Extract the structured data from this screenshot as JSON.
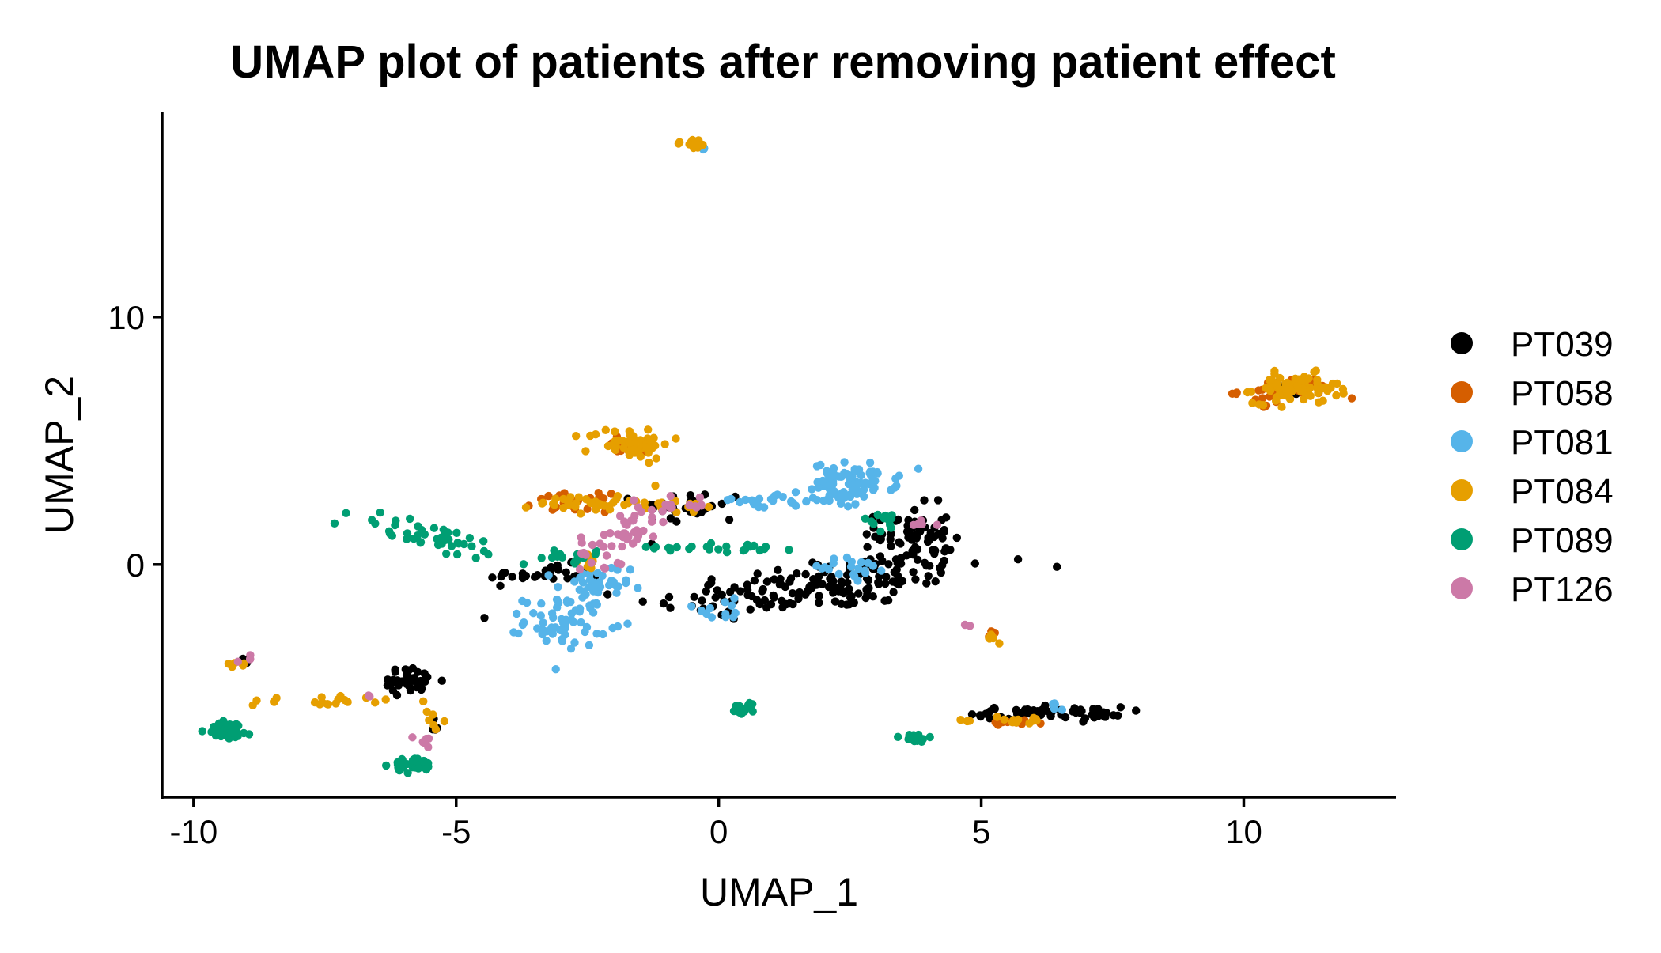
{
  "chart_data": {
    "type": "scatter",
    "title": "UMAP plot of patients after removing patient effect",
    "xlabel": "UMAP_1",
    "ylabel": "UMAP_2",
    "xlim": [
      -10.6,
      12.9
    ],
    "ylim": [
      -9.4,
      18.3
    ],
    "x_ticks": [
      -10,
      -5,
      0,
      5,
      10
    ],
    "x_tick_labels": [
      "-10",
      "-5",
      "0",
      "5",
      "10"
    ],
    "y_ticks": [
      0,
      10
    ],
    "y_tick_labels": [
      "0",
      "10"
    ],
    "grid": false,
    "legend_position": "right",
    "series": [
      {
        "name": "PT039",
        "color": "#000000",
        "clusters": [
          {
            "cx": 2.0,
            "cy": -0.8,
            "sx": 1.6,
            "sy": 0.55,
            "n": 170,
            "tilt": 0.25
          },
          {
            "cx": -0.5,
            "cy": 2.3,
            "sx": 0.5,
            "sy": 0.35,
            "n": 30
          },
          {
            "cx": -3.3,
            "cy": -0.4,
            "sx": 0.55,
            "sy": 0.2,
            "n": 30
          },
          {
            "cx": 3.7,
            "cy": 1.2,
            "sx": 0.35,
            "sy": 0.6,
            "n": 60
          },
          {
            "cx": -5.9,
            "cy": -4.7,
            "sx": 0.3,
            "sy": 0.25,
            "n": 40
          },
          {
            "cx": 6.3,
            "cy": -6.0,
            "sx": 0.7,
            "sy": 0.12,
            "n": 60
          },
          {
            "cx": -5.5,
            "cy": -6.5,
            "sx": 0.15,
            "sy": 0.2,
            "n": 6
          },
          {
            "cx": -9.0,
            "cy": -3.9,
            "sx": 0.08,
            "sy": 0.08,
            "n": 4
          },
          {
            "cx": 11.0,
            "cy": 7.0,
            "sx": 0.25,
            "sy": 0.3,
            "n": 4
          }
        ]
      },
      {
        "name": "PT058",
        "color": "#D55E00",
        "clusters": [
          {
            "cx": 10.8,
            "cy": 7.0,
            "sx": 0.45,
            "sy": 0.25,
            "n": 35
          },
          {
            "cx": -2.8,
            "cy": 2.5,
            "sx": 0.35,
            "sy": 0.18,
            "n": 25
          },
          {
            "cx": -1.7,
            "cy": 4.8,
            "sx": 0.35,
            "sy": 0.2,
            "n": 12
          },
          {
            "cx": 5.6,
            "cy": -6.4,
            "sx": 0.3,
            "sy": 0.1,
            "n": 10
          },
          {
            "cx": 5.2,
            "cy": -2.9,
            "sx": 0.1,
            "sy": 0.1,
            "n": 5
          }
        ]
      },
      {
        "name": "PT081",
        "color": "#56B4E9",
        "clusters": [
          {
            "cx": 2.6,
            "cy": 3.4,
            "sx": 0.4,
            "sy": 0.35,
            "n": 70
          },
          {
            "cx": 1.8,
            "cy": 2.7,
            "sx": 0.5,
            "sy": 0.2,
            "n": 25
          },
          {
            "cx": 0.8,
            "cy": 2.6,
            "sx": 0.4,
            "sy": 0.15,
            "n": 15
          },
          {
            "cx": -2.9,
            "cy": -2.3,
            "sx": 0.4,
            "sy": 0.5,
            "n": 60
          },
          {
            "cx": -2.4,
            "cy": -1.0,
            "sx": 0.35,
            "sy": 0.5,
            "n": 40
          },
          {
            "cx": 2.4,
            "cy": -0.2,
            "sx": 0.5,
            "sy": 0.3,
            "n": 20
          },
          {
            "cx": 0.0,
            "cy": -1.8,
            "sx": 0.4,
            "sy": 0.2,
            "n": 12
          },
          {
            "cx": 6.5,
            "cy": -5.8,
            "sx": 0.2,
            "sy": 0.1,
            "n": 5
          },
          {
            "cx": -0.3,
            "cy": 16.8,
            "sx": 0.05,
            "sy": 0.05,
            "n": 3
          }
        ]
      },
      {
        "name": "PT084",
        "color": "#E69F00",
        "clusters": [
          {
            "cx": 11.0,
            "cy": 7.1,
            "sx": 0.4,
            "sy": 0.3,
            "n": 80
          },
          {
            "cx": -1.7,
            "cy": 4.9,
            "sx": 0.4,
            "sy": 0.3,
            "n": 55
          },
          {
            "cx": -2.2,
            "cy": 2.5,
            "sx": 0.6,
            "sy": 0.2,
            "n": 40
          },
          {
            "cx": -0.5,
            "cy": 2.3,
            "sx": 0.4,
            "sy": 0.15,
            "n": 10
          },
          {
            "cx": -0.5,
            "cy": 17.0,
            "sx": 0.15,
            "sy": 0.1,
            "n": 14
          },
          {
            "cx": -7.4,
            "cy": -5.5,
            "sx": 0.8,
            "sy": 0.12,
            "n": 20
          },
          {
            "cx": -5.5,
            "cy": -6.3,
            "sx": 0.12,
            "sy": 0.2,
            "n": 6
          },
          {
            "cx": 5.7,
            "cy": -6.3,
            "sx": 0.35,
            "sy": 0.1,
            "n": 15
          },
          {
            "cx": 5.2,
            "cy": -3.0,
            "sx": 0.1,
            "sy": 0.1,
            "n": 6
          },
          {
            "cx": -9.1,
            "cy": -4.1,
            "sx": 0.1,
            "sy": 0.08,
            "n": 5
          },
          {
            "cx": -2.6,
            "cy": 0.1,
            "sx": 0.15,
            "sy": 0.3,
            "n": 10
          }
        ]
      },
      {
        "name": "PT089",
        "color": "#009E73",
        "clusters": [
          {
            "cx": -5.5,
            "cy": 1.1,
            "sx": 0.8,
            "sy": 0.3,
            "n": 45,
            "tilt": -0.4
          },
          {
            "cx": -9.3,
            "cy": -6.7,
            "sx": 0.22,
            "sy": 0.18,
            "n": 40
          },
          {
            "cx": -5.8,
            "cy": -8.1,
            "sx": 0.2,
            "sy": 0.15,
            "n": 30
          },
          {
            "cx": 0.5,
            "cy": -5.8,
            "sx": 0.12,
            "sy": 0.12,
            "n": 15
          },
          {
            "cx": 3.7,
            "cy": -7.0,
            "sx": 0.2,
            "sy": 0.1,
            "n": 15
          },
          {
            "cx": 0.2,
            "cy": 0.7,
            "sx": 0.7,
            "sy": 0.1,
            "n": 25
          },
          {
            "cx": -2.9,
            "cy": 0.3,
            "sx": 0.4,
            "sy": 0.12,
            "n": 15
          },
          {
            "cx": 3.0,
            "cy": 1.8,
            "sx": 0.3,
            "sy": 0.2,
            "n": 12
          }
        ]
      },
      {
        "name": "PT126",
        "color": "#CC79A7",
        "clusters": [
          {
            "cx": -1.8,
            "cy": 1.2,
            "sx": 0.45,
            "sy": 0.5,
            "n": 50,
            "tilt": 0.9
          },
          {
            "cx": -0.8,
            "cy": 2.4,
            "sx": 0.4,
            "sy": 0.12,
            "n": 12
          },
          {
            "cx": -5.6,
            "cy": -7.1,
            "sx": 0.1,
            "sy": 0.12,
            "n": 6
          },
          {
            "cx": -8.9,
            "cy": -3.8,
            "sx": 0.08,
            "sy": 0.06,
            "n": 4
          },
          {
            "cx": 4.7,
            "cy": -2.5,
            "sx": 0.05,
            "sy": 0.05,
            "n": 2
          },
          {
            "cx": 4.0,
            "cy": 1.6,
            "sx": 0.15,
            "sy": 0.15,
            "n": 5
          },
          {
            "cx": -6.6,
            "cy": -5.4,
            "sx": 0.1,
            "sy": 0.1,
            "n": 2
          }
        ]
      }
    ]
  }
}
